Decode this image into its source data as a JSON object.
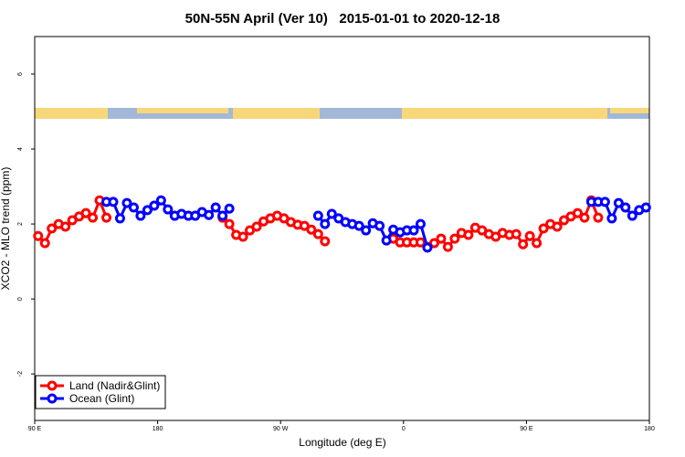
{
  "chart_data": {
    "type": "line",
    "title": "50N-55N April (Ver 10)   2015-01-01 to 2020-12-18",
    "x_label": "Longitude (deg E)",
    "y_label": "XCO2 - MLO trend (ppm)",
    "xlim": [
      90,
      540
    ],
    "ylim": [
      -3.24,
      7.0
    ],
    "xticks": [
      {
        "value": 90,
        "label": "90 E"
      },
      {
        "value": 180,
        "label": "180"
      },
      {
        "value": 270,
        "label": "90 W"
      },
      {
        "value": 360,
        "label": "0"
      },
      {
        "value": 450,
        "label": "90 E"
      },
      {
        "value": 540,
        "label": "180"
      }
    ],
    "yticks": [
      -2,
      0,
      2,
      4,
      6
    ],
    "legend": "bottom-left",
    "series": [
      {
        "name": "Land (Nadir&Glint)",
        "color": "#ff0000",
        "x": [
          92.5,
          97.5,
          102.5,
          107.5,
          112.5,
          117.5,
          122.5,
          127.5,
          132.5,
          137.5,
          142.5,
          null,
          227.5,
          232.5,
          237.5,
          242.5,
          247.5,
          252.5,
          257.5,
          262.5,
          267.5,
          272.5,
          277.5,
          282.5,
          287.5,
          292.5,
          297.5,
          302.5,
          null,
          352.5,
          357.5,
          362.5,
          367.5,
          372.5,
          377.5,
          382.5,
          387.5,
          392.5,
          397.5,
          402.5,
          407.5,
          412.5,
          417.5,
          422.5,
          427.5,
          432.5,
          437.5,
          442.5,
          447.5,
          452.5,
          457.5,
          462.5,
          467.5,
          472.5,
          477.5,
          482.5,
          487.5,
          492.5,
          497.5,
          502.5
        ],
        "values": [
          1.68,
          1.49,
          1.88,
          2.0,
          1.93,
          2.1,
          2.2,
          2.29,
          2.17,
          2.63,
          2.17,
          null,
          2.17,
          2.0,
          1.71,
          1.66,
          1.83,
          1.93,
          2.07,
          2.15,
          2.22,
          2.15,
          2.05,
          1.98,
          1.95,
          1.85,
          1.73,
          1.54,
          null,
          1.61,
          1.51,
          1.51,
          1.51,
          1.51,
          1.39,
          1.49,
          1.61,
          1.39,
          1.61,
          1.76,
          1.71,
          1.9,
          1.83,
          1.73,
          1.66,
          1.76,
          1.71,
          1.73,
          1.46,
          1.68,
          1.49,
          1.88,
          2.0,
          1.93,
          2.1,
          2.2,
          2.29,
          2.17,
          2.63,
          2.17
        ]
      },
      {
        "name": "Ocean (Glint)",
        "color": "#0000ff",
        "x": [
          142.5,
          147.5,
          152.5,
          157.5,
          162.5,
          167.5,
          172.5,
          177.5,
          182.5,
          187.5,
          192.5,
          197.5,
          202.5,
          207.5,
          212.5,
          217.5,
          222.5,
          227.5,
          232.5,
          null,
          297.5,
          302.5,
          307.5,
          312.5,
          317.5,
          322.5,
          327.5,
          332.5,
          337.5,
          342.5,
          347.5,
          352.5,
          357.5,
          362.5,
          367.5,
          372.5,
          377.5,
          null,
          497.5,
          502.5,
          507.5,
          512.5,
          517.5,
          522.5,
          527.5,
          532.5,
          537.5
        ],
        "values": [
          2.59,
          2.59,
          2.15,
          2.56,
          2.44,
          2.22,
          2.37,
          2.49,
          2.63,
          2.39,
          2.22,
          2.27,
          2.22,
          2.22,
          2.32,
          2.24,
          2.44,
          2.22,
          2.41,
          null,
          2.22,
          2.0,
          2.27,
          2.15,
          2.05,
          2.0,
          1.95,
          1.83,
          2.02,
          1.95,
          1.56,
          1.85,
          1.78,
          1.83,
          1.83,
          2.0,
          1.37,
          null,
          2.59,
          2.59,
          2.59,
          2.15,
          2.56,
          2.44,
          2.22,
          2.37,
          2.44
        ]
      }
    ]
  }
}
